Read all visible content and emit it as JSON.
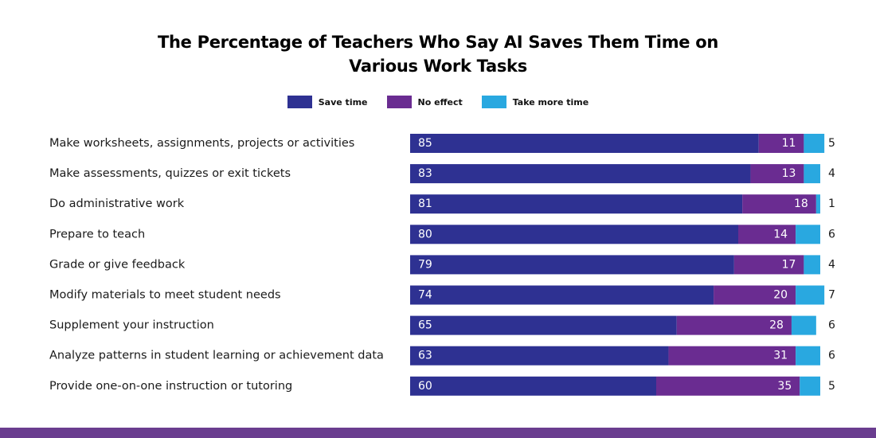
{
  "colors": {
    "save": "#2e3192",
    "no_effect": "#6a2c91",
    "more_time": "#29a8e0",
    "bottom_band": "#6a3d8f"
  },
  "chart_data": {
    "type": "bar",
    "orientation": "horizontal",
    "stacked": true,
    "title": "The Percentage of Teachers Who Say AI Saves Them Time on Various Work Tasks",
    "title_lines": [
      "The Percentage of Teachers Who Say AI Saves Them Time on",
      "Various Work Tasks"
    ],
    "legend_position": "top-center",
    "grid": false,
    "xlim": [
      0,
      100
    ],
    "categories": [
      "Make worksheets, assignments, projects or activities",
      "Make assessments, quizzes or exit tickets",
      "Do administrative work",
      "Prepare to teach",
      "Grade or give feedback",
      "Modify materials to meet student needs",
      "Supplement your instruction",
      "Analyze patterns in student learning or achievement data",
      "Provide one-on-one instruction or tutoring"
    ],
    "series": [
      {
        "name": "Save time",
        "color": "#2e3192",
        "values": [
          85,
          83,
          81,
          80,
          79,
          74,
          65,
          63,
          60
        ]
      },
      {
        "name": "No effect",
        "color": "#6a2c91",
        "values": [
          11,
          13,
          18,
          14,
          17,
          20,
          28,
          31,
          35
        ]
      },
      {
        "name": "Take more time",
        "color": "#29a8e0",
        "values": [
          5,
          4,
          1,
          6,
          4,
          7,
          6,
          6,
          5
        ]
      }
    ]
  }
}
